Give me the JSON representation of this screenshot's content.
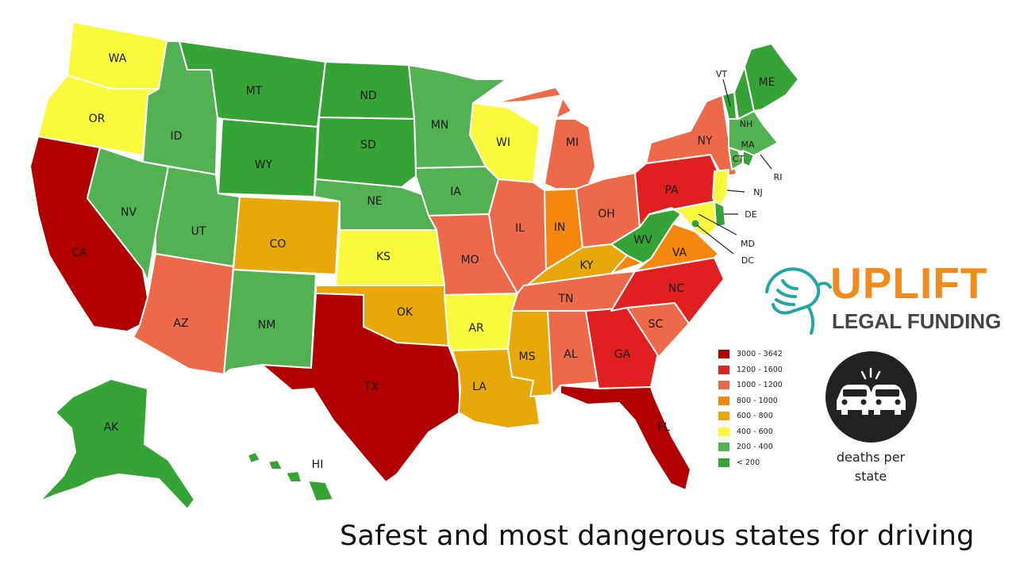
{
  "title": "Safest and most dangerous states for driving",
  "brand": {
    "line1": "UPLIFT",
    "line2": "LEGAL FUNDING"
  },
  "caption": {
    "line1": "deaths per",
    "line2": "state"
  },
  "legend": [
    {
      "label": "3000 - 3642",
      "color": "#b20000"
    },
    {
      "label": "1200 - 1600",
      "color": "#e02020"
    },
    {
      "label": "1000 - 1200",
      "color": "#ec6a4a"
    },
    {
      "label": "800 - 1000",
      "color": "#f5870f"
    },
    {
      "label": "600 - 800",
      "color": "#e8a80a"
    },
    {
      "label": "400 - 600",
      "color": "#fafa3c"
    },
    {
      "label": "200 - 400",
      "color": "#52b152"
    },
    {
      "label": "< 200",
      "color": "#36a336"
    }
  ],
  "states": [
    {
      "code": "WA",
      "bin": "400 - 600"
    },
    {
      "code": "OR",
      "bin": "400 - 600"
    },
    {
      "code": "CA",
      "bin": "3000 - 3642"
    },
    {
      "code": "ID",
      "bin": "200 - 400"
    },
    {
      "code": "NV",
      "bin": "200 - 400"
    },
    {
      "code": "UT",
      "bin": "200 - 400"
    },
    {
      "code": "AZ",
      "bin": "1000 - 1200"
    },
    {
      "code": "MT",
      "bin": "< 200"
    },
    {
      "code": "WY",
      "bin": "< 200"
    },
    {
      "code": "CO",
      "bin": "600 - 800"
    },
    {
      "code": "NM",
      "bin": "200 - 400"
    },
    {
      "code": "ND",
      "bin": "< 200"
    },
    {
      "code": "SD",
      "bin": "< 200"
    },
    {
      "code": "NE",
      "bin": "200 - 400"
    },
    {
      "code": "KS",
      "bin": "400 - 600"
    },
    {
      "code": "OK",
      "bin": "600 - 800"
    },
    {
      "code": "TX",
      "bin": "3000 - 3642"
    },
    {
      "code": "MN",
      "bin": "200 - 400"
    },
    {
      "code": "IA",
      "bin": "200 - 400"
    },
    {
      "code": "MO",
      "bin": "1000 - 1200"
    },
    {
      "code": "AR",
      "bin": "400 - 600"
    },
    {
      "code": "LA",
      "bin": "600 - 800"
    },
    {
      "code": "WI",
      "bin": "400 - 600"
    },
    {
      "code": "IL",
      "bin": "1000 - 1200"
    },
    {
      "code": "MI",
      "bin": "1000 - 1200"
    },
    {
      "code": "IN",
      "bin": "800 - 1000"
    },
    {
      "code": "OH",
      "bin": "1000 - 1200"
    },
    {
      "code": "KY",
      "bin": "600 - 800"
    },
    {
      "code": "TN",
      "bin": "1000 - 1200"
    },
    {
      "code": "MS",
      "bin": "600 - 800"
    },
    {
      "code": "AL",
      "bin": "1000 - 1200"
    },
    {
      "code": "GA",
      "bin": "1200 - 1600"
    },
    {
      "code": "FL",
      "bin": "3000 - 3642"
    },
    {
      "code": "SC",
      "bin": "1000 - 1200"
    },
    {
      "code": "NC",
      "bin": "1200 - 1600"
    },
    {
      "code": "VA",
      "bin": "800 - 1000"
    },
    {
      "code": "WV",
      "bin": "< 200"
    },
    {
      "code": "PA",
      "bin": "1200 - 1600"
    },
    {
      "code": "NY",
      "bin": "1000 - 1200"
    },
    {
      "code": "VT",
      "bin": "< 200"
    },
    {
      "code": "NH",
      "bin": "< 200"
    },
    {
      "code": "ME",
      "bin": "< 200"
    },
    {
      "code": "MA",
      "bin": "200 - 400"
    },
    {
      "code": "RI",
      "bin": "< 200"
    },
    {
      "code": "CT",
      "bin": "200 - 400"
    },
    {
      "code": "NJ",
      "bin": "400 - 600"
    },
    {
      "code": "DE",
      "bin": "< 200"
    },
    {
      "code": "MD",
      "bin": "400 - 600"
    },
    {
      "code": "DC",
      "bin": "< 200"
    },
    {
      "code": "AK",
      "bin": "< 200"
    },
    {
      "code": "HI",
      "bin": "< 200"
    }
  ]
}
